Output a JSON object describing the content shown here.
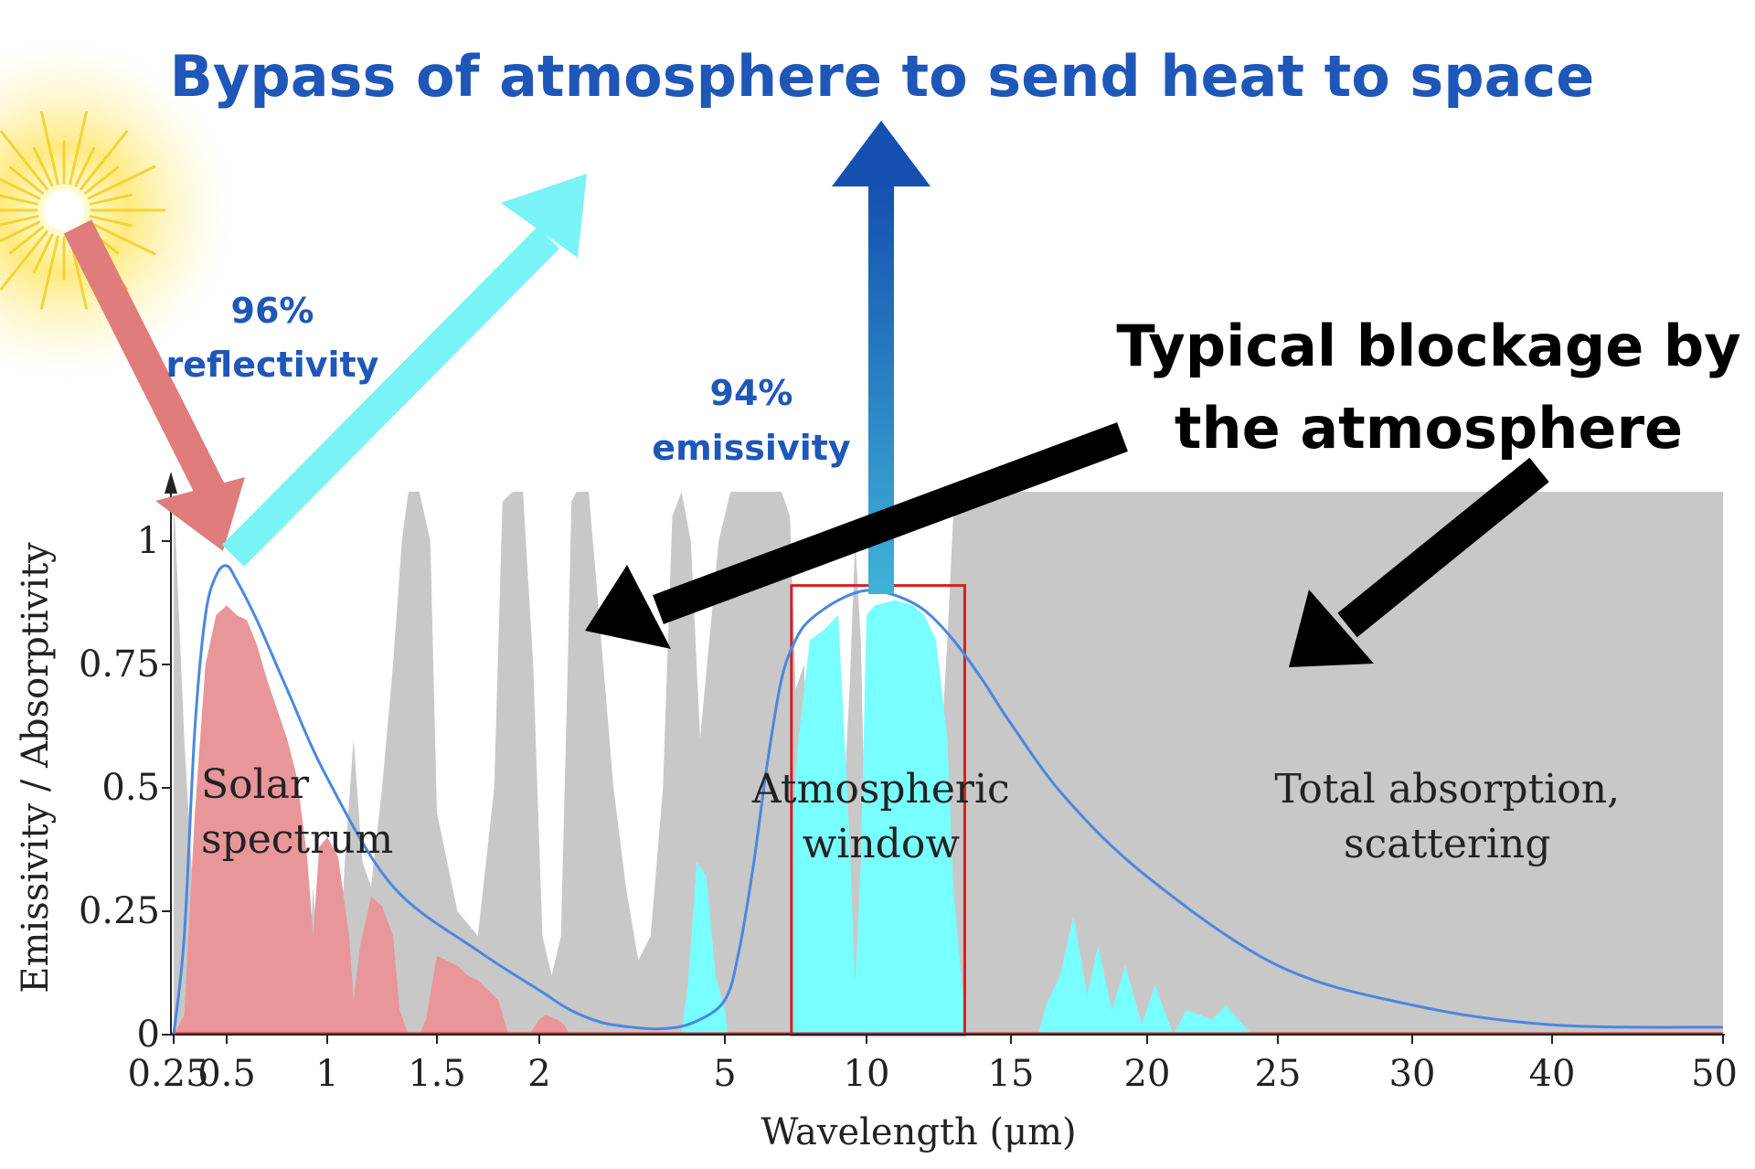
{
  "headline": "Bypass of atmosphere to send heat to space",
  "blockage_label": {
    "line1": "Typical blockage by",
    "line2": "the atmosphere"
  },
  "reflectivity_label": {
    "line1": "96%",
    "line2": "reflectivity"
  },
  "emissivity_label": {
    "line1": "94%",
    "line2": "emissivity"
  },
  "colors": {
    "headline": "#1f57b8",
    "atmosphere": "#c8c8c8",
    "solar": "#e8969a",
    "window": "#78ffff",
    "curve": "#4a87e0",
    "window_box": "#d42020",
    "sun_arrow": "#e07c7c",
    "reflect_arrow": "#7af3f7",
    "emit_arrow_top": "#1550b0",
    "emit_arrow_bottom": "#3fb3d8",
    "black_arrow": "#000000"
  },
  "icons": {
    "sun": "sun-icon",
    "incoming": "sunlight-arrow-icon",
    "reflected": "reflection-arrow-icon",
    "emitted": "emission-arrow-icon",
    "blockage": "blockage-arrow-icon"
  },
  "chart_data": {
    "type": "area",
    "xlabel": "Wavelength (μm)",
    "ylabel": "Emissivity / Absorptivity",
    "x_ticks": [
      {
        "label": "0.25",
        "value": 0.25
      },
      {
        "label": "0.5",
        "value": 0.5
      },
      {
        "label": "1",
        "value": 1
      },
      {
        "label": "1.5",
        "value": 1.5
      },
      {
        "label": "2",
        "value": 2
      },
      {
        "label": "5",
        "value": 5
      },
      {
        "label": "10",
        "value": 10
      },
      {
        "label": "15",
        "value": 15
      },
      {
        "label": "20",
        "value": 20
      },
      {
        "label": "25",
        "value": 25
      },
      {
        "label": "30",
        "value": 30
      },
      {
        "label": "40",
        "value": 40
      },
      {
        "label": "50",
        "value": 50
      }
    ],
    "y_ticks": [
      {
        "label": "0",
        "value": 0
      },
      {
        "label": "0.25",
        "value": 0.25
      },
      {
        "label": "0.5",
        "value": 0.5
      },
      {
        "label": "0.75",
        "value": 0.75
      },
      {
        "label": "1",
        "value": 1
      }
    ],
    "ylim": [
      0,
      1.1
    ],
    "xlim": [
      0.25,
      50
    ],
    "grid": false,
    "annotations": [
      {
        "lines": [
          "Solar",
          "spectrum"
        ],
        "x": 0.65,
        "y": 0.48
      },
      {
        "lines": [
          "Atmospheric",
          "window"
        ],
        "x": 10.5,
        "y": 0.47
      },
      {
        "lines": [
          "Total absorption,",
          "scattering"
        ],
        "x": 32.5,
        "y": 0.47
      }
    ],
    "atmospheric_absorption": {
      "x": [
        0.25,
        0.3,
        0.34,
        0.38,
        0.45,
        0.55,
        0.65,
        0.7,
        0.74,
        0.76,
        0.8,
        0.9,
        0.93,
        0.96,
        1.0,
        1.05,
        1.08,
        1.12,
        1.16,
        1.2,
        1.25,
        1.3,
        1.34,
        1.37,
        1.42,
        1.47,
        1.5,
        1.6,
        1.7,
        1.78,
        1.82,
        1.87,
        1.92,
        1.97,
        2.05,
        2.2,
        2.35,
        2.45,
        2.52,
        2.6,
        2.8,
        3.0,
        3.2,
        3.4,
        3.6,
        3.8,
        4.0,
        4.15,
        4.3,
        4.45,
        4.6,
        4.9,
        5.2,
        5.5,
        6.0,
        6.5,
        7.0,
        7.3,
        7.5,
        7.8,
        8.0,
        8.4,
        9.0,
        9.4,
        9.6,
        9.8,
        10.0,
        10.3,
        11.0,
        11.6,
        12.0,
        12.4,
        12.8,
        13.0,
        13.3,
        13.6,
        14.0,
        16.0,
        20.0,
        25.0,
        30.0,
        40.0,
        50.0
      ],
      "y": [
        1.1,
        0.6,
        0.3,
        0.15,
        0.0,
        0.0,
        0.0,
        0.05,
        0.2,
        0.45,
        0.12,
        0.05,
        0.3,
        0.12,
        0.05,
        0.1,
        0.35,
        0.6,
        0.35,
        0.3,
        0.5,
        0.75,
        1.0,
        1.1,
        1.1,
        1.0,
        0.45,
        0.25,
        0.2,
        0.5,
        1.08,
        1.1,
        1.1,
        0.75,
        0.2,
        0.12,
        0.2,
        0.7,
        1.08,
        1.1,
        1.1,
        0.8,
        0.5,
        0.3,
        0.15,
        0.2,
        0.5,
        1.05,
        1.1,
        1.0,
        0.6,
        1.0,
        1.1,
        1.1,
        1.1,
        1.1,
        1.1,
        1.05,
        0.7,
        0.75,
        0.35,
        0.3,
        0.25,
        0.7,
        1.0,
        0.8,
        0.25,
        0.25,
        0.2,
        0.3,
        0.25,
        0.4,
        0.8,
        1.05,
        1.1,
        1.1,
        1.1,
        1.1,
        1.1,
        1.1,
        1.1,
        1.1,
        1.1
      ]
    },
    "solar_spectrum": {
      "x": [
        0.25,
        0.3,
        0.35,
        0.4,
        0.45,
        0.5,
        0.55,
        0.6,
        0.65,
        0.7,
        0.75,
        0.8,
        0.85,
        0.9,
        0.93,
        0.96,
        1.0,
        1.05,
        1.1,
        1.12,
        1.15,
        1.2,
        1.25,
        1.3,
        1.33,
        1.37,
        1.42,
        1.45,
        1.5,
        1.55,
        1.6,
        1.65,
        1.7,
        1.75,
        1.8,
        1.85,
        1.9,
        1.95,
        2.0,
        2.1,
        2.2,
        2.3,
        2.4,
        2.5
      ],
      "y": [
        0.0,
        0.04,
        0.45,
        0.75,
        0.85,
        0.87,
        0.85,
        0.84,
        0.79,
        0.72,
        0.66,
        0.6,
        0.52,
        0.36,
        0.2,
        0.38,
        0.4,
        0.36,
        0.2,
        0.07,
        0.18,
        0.28,
        0.26,
        0.2,
        0.05,
        0.0,
        0.0,
        0.03,
        0.16,
        0.15,
        0.14,
        0.12,
        0.11,
        0.09,
        0.07,
        0.0,
        0.0,
        0.0,
        0.03,
        0.04,
        0.035,
        0.03,
        0.02,
        0.0
      ]
    },
    "window_transmission": {
      "x": [
        4.3,
        4.4,
        4.55,
        4.7,
        4.85,
        5.0,
        5.1,
        7.3,
        7.4,
        7.6,
        8.0,
        8.5,
        9.0,
        9.4,
        9.6,
        9.8,
        10.0,
        10.3,
        11.0,
        11.6,
        12.0,
        12.4,
        12.8,
        13.0,
        13.3,
        13.5,
        16.0,
        16.3,
        16.8,
        17.3,
        17.8,
        18.2,
        18.7,
        19.2,
        19.8,
        20.3,
        21.0,
        21.5,
        22.5,
        23.0,
        24.0
      ],
      "y": [
        0.0,
        0.1,
        0.35,
        0.32,
        0.12,
        0.05,
        0.0,
        0.0,
        0.45,
        0.6,
        0.8,
        0.82,
        0.85,
        0.4,
        0.1,
        0.35,
        0.85,
        0.87,
        0.88,
        0.87,
        0.85,
        0.8,
        0.6,
        0.3,
        0.1,
        0.0,
        0.0,
        0.06,
        0.12,
        0.24,
        0.08,
        0.18,
        0.05,
        0.14,
        0.02,
        0.1,
        0.0,
        0.05,
        0.03,
        0.06,
        0.0
      ]
    },
    "emissivity_curve": {
      "x": [
        0.25,
        0.3,
        0.35,
        0.4,
        0.45,
        0.5,
        0.55,
        0.65,
        0.8,
        1.0,
        1.3,
        1.7,
        2.0,
        2.5,
        3.0,
        3.5,
        4.0,
        4.5,
        5.0,
        5.5,
        6.0,
        6.5,
        7.0,
        7.5,
        8.0,
        9.0,
        10.0,
        11.0,
        12.0,
        13.0,
        14.0,
        15.0,
        17.0,
        20.0,
        25.0,
        30.0,
        40.0,
        50.0
      ],
      "y": [
        0.0,
        0.2,
        0.62,
        0.85,
        0.93,
        0.95,
        0.92,
        0.84,
        0.7,
        0.52,
        0.3,
        0.17,
        0.09,
        0.05,
        0.025,
        0.015,
        0.012,
        0.025,
        0.07,
        0.17,
        0.34,
        0.55,
        0.72,
        0.8,
        0.84,
        0.88,
        0.9,
        0.89,
        0.86,
        0.8,
        0.72,
        0.63,
        0.48,
        0.32,
        0.14,
        0.06,
        0.02,
        0.015
      ]
    },
    "window_box": {
      "x": [
        7.35,
        13.4
      ],
      "y": [
        0,
        0.91
      ]
    }
  }
}
